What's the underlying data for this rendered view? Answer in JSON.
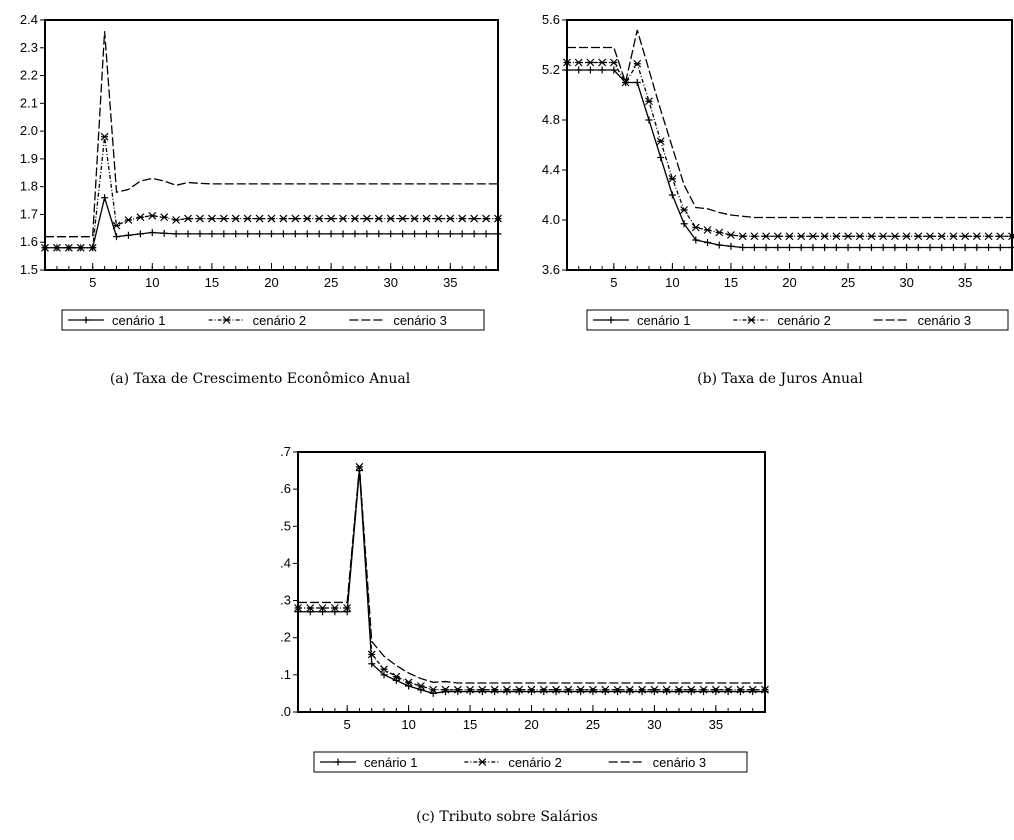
{
  "chart_data": [
    {
      "type": "line",
      "caption": "(a) Taxa de Crescimento Econômico Anual",
      "legend": "bottom",
      "x": [
        1,
        2,
        3,
        4,
        5,
        6,
        7,
        8,
        9,
        10,
        11,
        12,
        13,
        14,
        15,
        16,
        17,
        18,
        19,
        20,
        21,
        22,
        23,
        24,
        25,
        26,
        27,
        28,
        29,
        30,
        31,
        32,
        33,
        34,
        35,
        36,
        37,
        38,
        39
      ],
      "xlim": [
        1,
        39
      ],
      "xticks": [
        5,
        10,
        15,
        20,
        25,
        30,
        35
      ],
      "ylim": [
        1.5,
        2.4
      ],
      "yticks": [
        1.5,
        1.6,
        1.7,
        1.8,
        1.9,
        {
          "value": 2,
          "label": "2.0"
        },
        2.1,
        2.2,
        2.3,
        2.4
      ],
      "series": [
        {
          "name": "cenário 1",
          "color": "#000000",
          "marker": "plus",
          "dash": "solid",
          "values": [
            1.58,
            1.58,
            1.58,
            1.58,
            1.58,
            1.76,
            1.62,
            1.625,
            1.63,
            1.635,
            1.632,
            1.63,
            1.63,
            1.63,
            1.63,
            1.63,
            1.63,
            1.63,
            1.63,
            1.63,
            1.63,
            1.63,
            1.63,
            1.63,
            1.63,
            1.63,
            1.63,
            1.63,
            1.63,
            1.63,
            1.63,
            1.63,
            1.63,
            1.63,
            1.63,
            1.63,
            1.63,
            1.63,
            1.63
          ]
        },
        {
          "name": "cenário 2",
          "color": "#000000",
          "marker": "cross",
          "dash": "dashdot",
          "values": [
            1.58,
            1.58,
            1.58,
            1.58,
            1.58,
            1.98,
            1.66,
            1.68,
            1.69,
            1.695,
            1.69,
            1.68,
            1.685,
            1.685,
            1.685,
            1.685,
            1.685,
            1.685,
            1.685,
            1.685,
            1.685,
            1.685,
            1.685,
            1.685,
            1.685,
            1.685,
            1.685,
            1.685,
            1.685,
            1.685,
            1.685,
            1.685,
            1.685,
            1.685,
            1.685,
            1.685,
            1.685,
            1.685,
            1.685
          ]
        },
        {
          "name": "cenário 3",
          "color": "#000000",
          "marker": null,
          "dash": "dashed",
          "values": [
            1.62,
            1.62,
            1.62,
            1.62,
            1.62,
            2.36,
            1.78,
            1.79,
            1.82,
            1.83,
            1.82,
            1.805,
            1.815,
            1.812,
            1.81,
            1.81,
            1.81,
            1.81,
            1.81,
            1.81,
            1.81,
            1.81,
            1.81,
            1.81,
            1.81,
            1.81,
            1.81,
            1.81,
            1.81,
            1.81,
            1.81,
            1.81,
            1.81,
            1.81,
            1.81,
            1.81,
            1.81,
            1.81,
            1.81
          ]
        }
      ]
    },
    {
      "type": "line",
      "caption": "(b) Taxa de Juros Anual",
      "legend": "bottom",
      "x": [
        1,
        2,
        3,
        4,
        5,
        6,
        7,
        8,
        9,
        10,
        11,
        12,
        13,
        14,
        15,
        16,
        17,
        18,
        19,
        20,
        21,
        22,
        23,
        24,
        25,
        26,
        27,
        28,
        29,
        30,
        31,
        32,
        33,
        34,
        35,
        36,
        37,
        38,
        39
      ],
      "xlim": [
        1,
        39
      ],
      "xticks": [
        5,
        10,
        15,
        20,
        25,
        30,
        35
      ],
      "ylim": [
        3.6,
        5.6
      ],
      "yticks": [
        3.6,
        {
          "value": 4,
          "label": "4.0"
        },
        4.4,
        4.8,
        5.2,
        5.6
      ],
      "series": [
        {
          "name": "cenário 1",
          "color": "#000000",
          "marker": "plus",
          "dash": "solid",
          "values": [
            5.2,
            5.2,
            5.2,
            5.2,
            5.2,
            5.1,
            5.1,
            4.8,
            4.5,
            4.2,
            3.97,
            3.84,
            3.82,
            3.8,
            3.79,
            3.78,
            3.78,
            3.78,
            3.78,
            3.78,
            3.78,
            3.78,
            3.78,
            3.78,
            3.78,
            3.78,
            3.78,
            3.78,
            3.78,
            3.78,
            3.78,
            3.78,
            3.78,
            3.78,
            3.78,
            3.78,
            3.78,
            3.78,
            3.78
          ]
        },
        {
          "name": "cenário 2",
          "color": "#000000",
          "marker": "cross",
          "dash": "dashdot",
          "values": [
            5.26,
            5.26,
            5.26,
            5.26,
            5.26,
            5.1,
            5.25,
            4.95,
            4.63,
            4.33,
            4.08,
            3.94,
            3.92,
            3.9,
            3.88,
            3.87,
            3.87,
            3.87,
            3.87,
            3.87,
            3.87,
            3.87,
            3.87,
            3.87,
            3.87,
            3.87,
            3.87,
            3.87,
            3.87,
            3.87,
            3.87,
            3.87,
            3.87,
            3.87,
            3.87,
            3.87,
            3.87,
            3.87,
            3.87
          ]
        },
        {
          "name": "cenário 3",
          "color": "#000000",
          "marker": null,
          "dash": "dashed",
          "values": [
            5.38,
            5.38,
            5.38,
            5.38,
            5.38,
            5.1,
            5.52,
            5.2,
            4.88,
            4.58,
            4.28,
            4.1,
            4.09,
            4.06,
            4.04,
            4.03,
            4.02,
            4.02,
            4.02,
            4.02,
            4.02,
            4.02,
            4.02,
            4.02,
            4.02,
            4.02,
            4.02,
            4.02,
            4.02,
            4.02,
            4.02,
            4.02,
            4.02,
            4.02,
            4.02,
            4.02,
            4.02,
            4.02,
            4.02
          ]
        }
      ]
    },
    {
      "type": "line",
      "caption": "(c) Tributo sobre Salários",
      "legend": "bottom",
      "x": [
        1,
        2,
        3,
        4,
        5,
        6,
        7,
        8,
        9,
        10,
        11,
        12,
        13,
        14,
        15,
        16,
        17,
        18,
        19,
        20,
        21,
        22,
        23,
        24,
        25,
        26,
        27,
        28,
        29,
        30,
        31,
        32,
        33,
        34,
        35,
        36,
        37,
        38,
        39
      ],
      "xlim": [
        1,
        39
      ],
      "xticks": [
        5,
        10,
        15,
        20,
        25,
        30,
        35
      ],
      "ylim": [
        0,
        0.7
      ],
      "yticks": [
        {
          "value": 0,
          "label": ".0"
        },
        {
          "value": 0.1,
          "label": ".1"
        },
        {
          "value": 0.2,
          "label": ".2"
        },
        {
          "value": 0.3,
          "label": ".3"
        },
        {
          "value": 0.4,
          "label": ".4"
        },
        {
          "value": 0.5,
          "label": ".5"
        },
        {
          "value": 0.6,
          "label": ".6"
        },
        {
          "value": 0.7,
          "label": ".7"
        }
      ],
      "series": [
        {
          "name": "cenário 1",
          "color": "#000000",
          "marker": "plus",
          "dash": "solid",
          "values": [
            0.27,
            0.27,
            0.27,
            0.27,
            0.27,
            0.65,
            0.13,
            0.1,
            0.085,
            0.07,
            0.06,
            0.05,
            0.055,
            0.055,
            0.055,
            0.055,
            0.055,
            0.055,
            0.055,
            0.055,
            0.055,
            0.055,
            0.055,
            0.055,
            0.055,
            0.055,
            0.055,
            0.055,
            0.055,
            0.055,
            0.055,
            0.055,
            0.055,
            0.055,
            0.055,
            0.055,
            0.055,
            0.055,
            0.055
          ]
        },
        {
          "name": "cenário 2",
          "color": "#000000",
          "marker": "cross",
          "dash": "dashdot",
          "values": [
            0.28,
            0.28,
            0.28,
            0.28,
            0.28,
            0.66,
            0.155,
            0.115,
            0.095,
            0.08,
            0.07,
            0.06,
            0.06,
            0.06,
            0.06,
            0.06,
            0.06,
            0.06,
            0.06,
            0.06,
            0.06,
            0.06,
            0.06,
            0.06,
            0.06,
            0.06,
            0.06,
            0.06,
            0.06,
            0.06,
            0.06,
            0.06,
            0.06,
            0.06,
            0.06,
            0.06,
            0.06,
            0.06,
            0.06
          ]
        },
        {
          "name": "cenário 3",
          "color": "#000000",
          "marker": null,
          "dash": "dashed",
          "values": [
            0.295,
            0.295,
            0.295,
            0.295,
            0.295,
            0.66,
            0.19,
            0.15,
            0.125,
            0.105,
            0.09,
            0.08,
            0.082,
            0.078,
            0.078,
            0.078,
            0.078,
            0.078,
            0.078,
            0.078,
            0.078,
            0.078,
            0.078,
            0.078,
            0.078,
            0.078,
            0.078,
            0.078,
            0.078,
            0.078,
            0.078,
            0.078,
            0.078,
            0.078,
            0.078,
            0.078,
            0.078,
            0.078,
            0.078
          ]
        }
      ]
    }
  ]
}
